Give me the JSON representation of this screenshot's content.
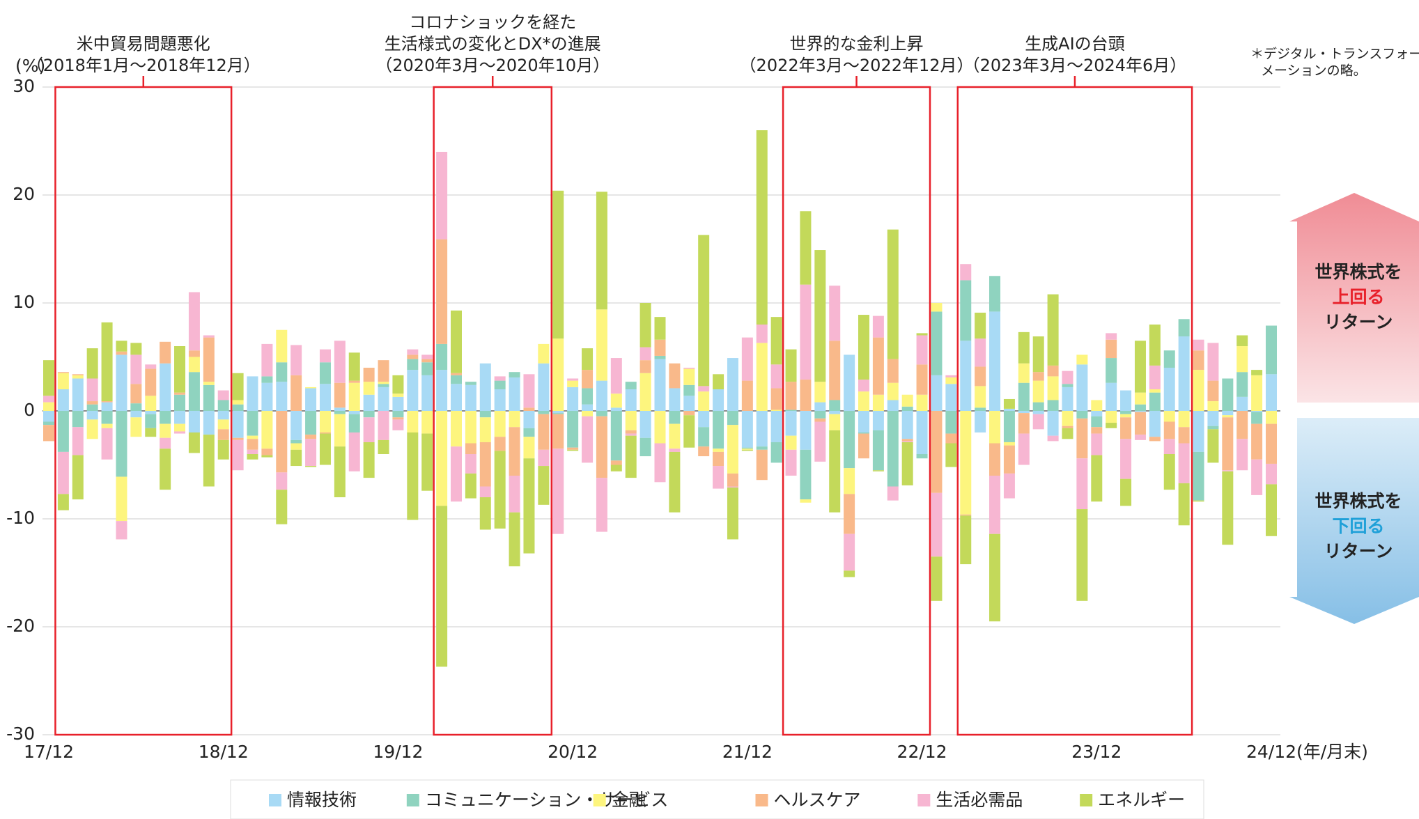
{
  "chart_data": {
    "type": "bar",
    "stacked": true,
    "y_label": "(%)",
    "x_label": "(年/月末)",
    "ylim": [
      -30,
      30
    ],
    "yticks": [
      30,
      20,
      10,
      0,
      -10,
      -20,
      -30
    ],
    "grid": true,
    "categories": [
      "17/12",
      null,
      null,
      null,
      null,
      null,
      null,
      null,
      null,
      null,
      null,
      null,
      "18/12",
      null,
      null,
      null,
      null,
      null,
      null,
      null,
      null,
      null,
      null,
      null,
      "19/12",
      null,
      null,
      null,
      null,
      null,
      null,
      null,
      null,
      null,
      null,
      null,
      "20/12",
      null,
      null,
      null,
      null,
      null,
      null,
      null,
      null,
      null,
      null,
      null,
      "21/12",
      null,
      null,
      null,
      null,
      null,
      null,
      null,
      null,
      null,
      null,
      null,
      "22/12",
      null,
      null,
      null,
      null,
      null,
      null,
      null,
      null,
      null,
      null,
      null,
      "23/12",
      null,
      null,
      null,
      null,
      null,
      null,
      null,
      null,
      null,
      null,
      null,
      "24/12"
    ],
    "series": [
      {
        "name": "情報技術",
        "color": "#a8daf5",
        "values": [
          -1,
          2,
          3,
          -0.8,
          0.8,
          5.2,
          -0.6,
          -0.3,
          4.4,
          -1.2,
          -2,
          -2.2,
          -0.8,
          -2.5,
          3.2,
          2.6,
          2.7,
          -2.7,
          2.1,
          2.5,
          0.3,
          -0.3,
          1.5,
          2.2,
          1.3,
          3.8,
          3.3,
          3.8,
          2.5,
          2.4,
          4.4,
          2,
          3.1,
          -1.6,
          4.4,
          -0.2,
          2.2,
          0.6,
          2.8,
          0.3,
          2,
          -2.5,
          4.8,
          2.1,
          1.4,
          -1.5,
          2,
          4.9,
          -3.4,
          -3.3,
          -2.9,
          -2.3,
          -3.6,
          0.8,
          -0.3,
          5.2,
          -2,
          -1.8,
          1,
          -2.6,
          -4,
          3.3,
          2.5,
          6.5,
          -2,
          9.2,
          0.2,
          -0.2,
          -0.3,
          -2.3,
          2.2,
          4.3,
          -0.5,
          2.6,
          1.9,
          -0.1,
          -2.4,
          4,
          6.9,
          -3.8,
          -1.4,
          -0.4,
          1.3,
          -0.1,
          3.4
        ]
      },
      {
        "name": "コミュニケーション・サービス",
        "color": "#8fd3bf",
        "values": [
          -0.3,
          -3.8,
          -1.5,
          0.6,
          -1.2,
          -6.1,
          0.7,
          -1.3,
          -1.2,
          1.5,
          3.6,
          2.4,
          1,
          0.6,
          -2.3,
          0.6,
          1.8,
          -0.3,
          -2.2,
          2,
          -0.3,
          -1.7,
          -0.6,
          0.3,
          -0.6,
          1,
          1.2,
          2.4,
          0.8,
          0.3,
          -0.6,
          0.8,
          0.5,
          -0.8,
          -0.3,
          -0.1,
          -3.4,
          1.5,
          -0.5,
          -4.6,
          0.7,
          -1.7,
          0.3,
          -1.2,
          1,
          -1.8,
          -3.5,
          -1.3,
          -0.1,
          -0.3,
          -1.9,
          0.1,
          -4.6,
          -0.7,
          1,
          -5.3,
          -0.1,
          -3.7,
          -7,
          0.4,
          -0.4,
          5.9,
          -2.1,
          5.6,
          0.3,
          3.3,
          -2.9,
          2.6,
          0.8,
          1,
          0.3,
          -0.7,
          -1,
          2.3,
          -0.3,
          0.6,
          1.7,
          1.6,
          1.6,
          -4.5,
          -0.3,
          3,
          2.3,
          -1.1,
          4.5
        ]
      },
      {
        "name": "金融",
        "color": "#fdf57e",
        "values": [
          0.8,
          1.5,
          0.3,
          -1.8,
          -0.4,
          -4.1,
          -1.8,
          1.4,
          -1.3,
          -0.7,
          1.4,
          0.3,
          -0.9,
          0.4,
          -0.3,
          -3.5,
          3,
          -0.6,
          0.1,
          -2,
          -3,
          2.6,
          1.2,
          0.2,
          0.3,
          -2,
          -2.1,
          -8.8,
          -3.3,
          -3,
          -2.3,
          -2.4,
          -1.5,
          -2,
          1.8,
          6.7,
          0.6,
          -0.5,
          6.6,
          1.3,
          -1.8,
          3.5,
          -3,
          -2.3,
          1.5,
          1.8,
          -0.3,
          -4.5,
          -0.1,
          6.3,
          0.1,
          -1.3,
          -0.3,
          1.9,
          -1.5,
          -2.4,
          1.8,
          1.5,
          1.6,
          1.1,
          1.5,
          0.8,
          0.6,
          -9.6,
          2,
          -3,
          -0.3,
          1.8,
          2,
          2.2,
          -1.4,
          0.9,
          1,
          -1.1,
          -0.3,
          1.1,
          0.3,
          -1,
          -1.5,
          3.8,
          0.9,
          -0.2,
          2.4,
          3.3,
          -1.2
        ]
      },
      {
        "name": "ヘルスケア",
        "color": "#f9b98a",
        "values": [
          -1.5,
          0.1,
          0.1,
          0.3,
          0.1,
          0.3,
          1.8,
          2.5,
          2,
          0.2,
          0.6,
          4.1,
          -1,
          -0.2,
          -1,
          -0.6,
          -5.7,
          3.3,
          -0.4,
          -0.1,
          2.3,
          0.2,
          1.3,
          2,
          -0.2,
          0.4,
          0.3,
          9.7,
          0.2,
          -1,
          -4.1,
          -1.3,
          -4.5,
          0.3,
          -3.3,
          -3.2,
          -0.2,
          1.7,
          -5.7,
          -0.4,
          -0.3,
          1.2,
          1.5,
          2.3,
          -0.4,
          -0.9,
          -1.3,
          -1.2,
          2.8,
          -2.8,
          2,
          2.6,
          2.9,
          -0.3,
          5.5,
          -3.7,
          -2.3,
          5.3,
          2.2,
          -0.2,
          2.8,
          -7.6,
          -0.9,
          -0.1,
          1.8,
          -3,
          -2.6,
          -1.9,
          0.8,
          1,
          -0.2,
          -3.7,
          -0.6,
          1.7,
          -2,
          -2.1,
          -0.4,
          -1.6,
          -1.5,
          1.8,
          1.9,
          -4.9,
          -2.6,
          -3.3,
          -3.7
        ]
      },
      {
        "name": "生活必需品",
        "color": "#f7b6d2",
        "values": [
          0.6,
          -3.9,
          -2.6,
          2.1,
          -2.9,
          -1.7,
          2.7,
          0.4,
          -1,
          -0.2,
          5.4,
          0.2,
          0.9,
          -2.8,
          -0.4,
          3,
          -1.6,
          2.8,
          -2.5,
          1.2,
          3.9,
          -3.6,
          -2.3,
          -2.7,
          -1,
          0.5,
          0.4,
          8.1,
          -5.1,
          -1.8,
          -1,
          0.4,
          -3.4,
          3.1,
          -1.5,
          -7.9,
          0.2,
          -4.3,
          -5,
          3.3,
          -0.2,
          1.2,
          -3.6,
          -0.3,
          0.1,
          0.5,
          -2.1,
          -0.1,
          4,
          1.7,
          2.2,
          -2.4,
          8.8,
          -3.7,
          5.1,
          -3.4,
          1.1,
          2,
          -1.3,
          -0.1,
          2.7,
          -5.9,
          0.2,
          1.5,
          2.6,
          -5.4,
          -2.3,
          -2.9,
          -1.4,
          -0.5,
          1.2,
          -4.7,
          -2,
          0.6,
          -3.7,
          -0.5,
          2.2,
          -1.4,
          -3.7,
          1,
          3.5,
          -0.1,
          -2.9,
          -3.3,
          -1.9
        ]
      },
      {
        "name": "エネルギー",
        "color": "#c3d95a",
        "values": [
          3.3,
          -1.5,
          -4.1,
          2.8,
          7.3,
          1,
          1.1,
          -0.8,
          -3.8,
          4.3,
          -1.9,
          -4.8,
          -1.8,
          2.5,
          -0.5,
          -0.2,
          -3.2,
          -1.5,
          -0.1,
          -2.9,
          -4.7,
          2.6,
          -3.3,
          -1.3,
          1.7,
          -8.1,
          -5.3,
          -14.9,
          5.8,
          -2.3,
          -3,
          -7.2,
          -5,
          -8.8,
          -3.6,
          13.7,
          -0.1,
          2,
          10.9,
          -0.6,
          -3.9,
          4.1,
          2.1,
          -5.6,
          -3,
          14,
          1.4,
          -4.8,
          -0.1,
          18,
          4.4,
          3,
          6.8,
          12.2,
          -7.6,
          -0.6,
          6,
          -0.1,
          12,
          -4,
          0.2,
          -4.1,
          -2.2,
          -4.5,
          2.4,
          -8.1,
          0.9,
          2.9,
          3.3,
          6.6,
          -1,
          -8.5,
          -4.3,
          -0.5,
          -2.5,
          4.8,
          3.8,
          -3.3,
          -3.9,
          -0.1,
          -3.1,
          -6.8,
          1,
          0.5,
          -4.8
        ]
      }
    ],
    "annotations": [
      {
        "lines": [
          "米中貿易問題悪化",
          "（2018年1月〜2018年12月）"
        ],
        "span": [
          1,
          12
        ]
      },
      {
        "lines": [
          "コロナショックを経た",
          "生活様式の変化とDX*の進展",
          "（2020年3月〜2020年10月）"
        ],
        "span": [
          27,
          34
        ]
      },
      {
        "lines": [
          "世界的な金利上昇",
          "（2022年3月〜2022年12月）"
        ],
        "span": [
          51,
          60
        ]
      },
      {
        "lines": [
          "生成AIの台頭",
          "（2023年3月〜2024年6月）"
        ],
        "span": [
          63,
          78
        ]
      }
    ],
    "footnote": [
      "＊デジタル・トランスフォー",
      "メーションの略。"
    ],
    "above_label": [
      "世界株式を",
      "上回る",
      "リターン"
    ],
    "below_label": [
      "世界株式を",
      "下回る",
      "リターン"
    ]
  }
}
